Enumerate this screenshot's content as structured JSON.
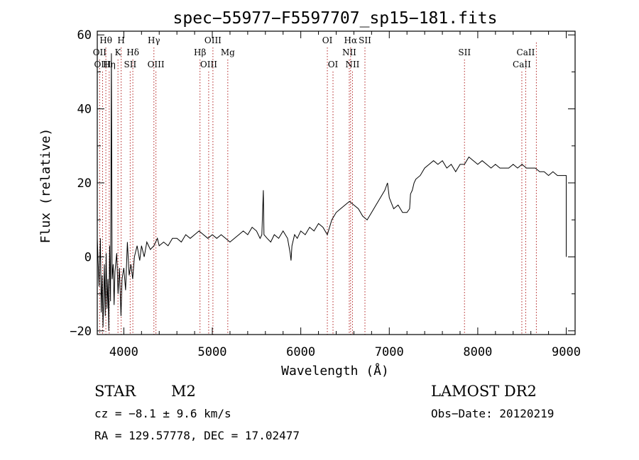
{
  "chart_data": {
    "type": "line",
    "title": "spec−55977−F5597707_sp15−181.fits",
    "xlabel": "Wavelength (Å)",
    "ylabel": "Flux (relative)",
    "xlim": [
      3700,
      9100
    ],
    "ylim": [
      -21,
      61
    ],
    "x_ticks": [
      4000,
      5000,
      6000,
      7000,
      8000,
      9000
    ],
    "y_ticks": [
      -20,
      0,
      20,
      40,
      60
    ],
    "x_tick_labels": [
      "4000",
      "5000",
      "6000",
      "7000",
      "8000",
      "9000"
    ],
    "y_tick_labels": [
      "−20",
      "0",
      "20",
      "40",
      "60"
    ],
    "line_color": "#000000",
    "marker_color": "#b22222",
    "series": [
      {
        "points": [
          [
            3700,
            5
          ],
          [
            3720,
            -8
          ],
          [
            3735,
            5
          ],
          [
            3745,
            -15
          ],
          [
            3755,
            -5
          ],
          [
            3765,
            -19
          ],
          [
            3780,
            -2
          ],
          [
            3790,
            -16
          ],
          [
            3800,
            1
          ],
          [
            3810,
            -14
          ],
          [
            3820,
            -6
          ],
          [
            3830,
            -20
          ],
          [
            3840,
            3
          ],
          [
            3850,
            -12
          ],
          [
            3860,
            55
          ],
          [
            3868,
            -6
          ],
          [
            3880,
            -2
          ],
          [
            3890,
            -13
          ],
          [
            3900,
            -4
          ],
          [
            3920,
            1
          ],
          [
            3935,
            -10
          ],
          [
            3950,
            -3
          ],
          [
            3968,
            -16
          ],
          [
            3980,
            -6
          ],
          [
            4000,
            -3
          ],
          [
            4020,
            -9
          ],
          [
            4040,
            4
          ],
          [
            4060,
            -5
          ],
          [
            4080,
            -2
          ],
          [
            4100,
            -6
          ],
          [
            4120,
            0
          ],
          [
            4150,
            3
          ],
          [
            4180,
            -1
          ],
          [
            4200,
            3
          ],
          [
            4230,
            0
          ],
          [
            4260,
            4
          ],
          [
            4300,
            2
          ],
          [
            4340,
            3
          ],
          [
            4380,
            5
          ],
          [
            4400,
            3
          ],
          [
            4450,
            4
          ],
          [
            4500,
            3
          ],
          [
            4550,
            5
          ],
          [
            4600,
            5
          ],
          [
            4650,
            4
          ],
          [
            4700,
            6
          ],
          [
            4750,
            5
          ],
          [
            4800,
            6
          ],
          [
            4850,
            7
          ],
          [
            4900,
            6
          ],
          [
            4950,
            5
          ],
          [
            5000,
            6
          ],
          [
            5050,
            5
          ],
          [
            5100,
            6
          ],
          [
            5150,
            5
          ],
          [
            5200,
            4
          ],
          [
            5250,
            5
          ],
          [
            5300,
            6
          ],
          [
            5350,
            7
          ],
          [
            5400,
            6
          ],
          [
            5450,
            8
          ],
          [
            5500,
            7
          ],
          [
            5540,
            5
          ],
          [
            5560,
            6
          ],
          [
            5577,
            18
          ],
          [
            5584,
            6
          ],
          [
            5620,
            5
          ],
          [
            5660,
            4
          ],
          [
            5700,
            6
          ],
          [
            5750,
            5
          ],
          [
            5800,
            7
          ],
          [
            5850,
            5
          ],
          [
            5880,
            1
          ],
          [
            5890,
            -1
          ],
          [
            5900,
            3
          ],
          [
            5930,
            6
          ],
          [
            5960,
            5
          ],
          [
            6000,
            7
          ],
          [
            6050,
            6
          ],
          [
            6100,
            8
          ],
          [
            6150,
            7
          ],
          [
            6200,
            9
          ],
          [
            6250,
            8
          ],
          [
            6300,
            6
          ],
          [
            6350,
            10
          ],
          [
            6400,
            12
          ],
          [
            6450,
            13
          ],
          [
            6500,
            14
          ],
          [
            6550,
            15
          ],
          [
            6600,
            14
          ],
          [
            6650,
            13
          ],
          [
            6700,
            11
          ],
          [
            6750,
            10
          ],
          [
            6800,
            12
          ],
          [
            6850,
            14
          ],
          [
            6900,
            16
          ],
          [
            6950,
            18
          ],
          [
            6980,
            20
          ],
          [
            7000,
            16
          ],
          [
            7050,
            13
          ],
          [
            7100,
            14
          ],
          [
            7150,
            12
          ],
          [
            7200,
            12
          ],
          [
            7230,
            13
          ],
          [
            7240,
            17
          ],
          [
            7260,
            18
          ],
          [
            7280,
            20
          ],
          [
            7300,
            21
          ],
          [
            7350,
            22
          ],
          [
            7400,
            24
          ],
          [
            7450,
            25
          ],
          [
            7500,
            26
          ],
          [
            7550,
            25
          ],
          [
            7600,
            26
          ],
          [
            7650,
            24
          ],
          [
            7700,
            25
          ],
          [
            7750,
            23
          ],
          [
            7800,
            25
          ],
          [
            7850,
            25
          ],
          [
            7900,
            27
          ],
          [
            7950,
            26
          ],
          [
            8000,
            25
          ],
          [
            8050,
            26
          ],
          [
            8100,
            25
          ],
          [
            8150,
            24
          ],
          [
            8200,
            25
          ],
          [
            8250,
            24
          ],
          [
            8300,
            24
          ],
          [
            8350,
            24
          ],
          [
            8400,
            25
          ],
          [
            8450,
            24
          ],
          [
            8500,
            25
          ],
          [
            8550,
            24
          ],
          [
            8600,
            24
          ],
          [
            8650,
            24
          ],
          [
            8700,
            23
          ],
          [
            8750,
            23
          ],
          [
            8800,
            22
          ],
          [
            8850,
            23
          ],
          [
            8900,
            22
          ],
          [
            8950,
            22
          ],
          [
            9000,
            22
          ],
          [
            9000,
            0
          ]
        ]
      }
    ],
    "line_markers": [
      {
        "label": "Hθ",
        "x": 3797,
        "row": 0
      },
      {
        "label": "H",
        "x": 3970,
        "row": 0
      },
      {
        "label": "Hγ",
        "x": 4340,
        "row": 0
      },
      {
        "label": "OIII",
        "x": 5007,
        "row": 0
      },
      {
        "label": "OI",
        "x": 6300,
        "row": 0
      },
      {
        "label": "Hα",
        "x": 6563,
        "row": 0
      },
      {
        "label": "SII",
        "x": 6725,
        "row": 0
      },
      {
        "label": "OII",
        "x": 3727,
        "row": 1
      },
      {
        "label": "K",
        "x": 3934,
        "row": 1
      },
      {
        "label": "Hδ",
        "x": 4102,
        "row": 1
      },
      {
        "label": "Hβ",
        "x": 4861,
        "row": 1
      },
      {
        "label": "Mg",
        "x": 5175,
        "row": 1
      },
      {
        "label": "NII",
        "x": 6548,
        "row": 1
      },
      {
        "label": "SII",
        "x": 7850,
        "row": 1
      },
      {
        "label": "CaII",
        "x": 8542,
        "row": 1
      },
      {
        "label": "OIII",
        "x": 3760,
        "row": 2
      },
      {
        "label": "Hη",
        "x": 3835,
        "row": 2
      },
      {
        "label": "SII",
        "x": 4072,
        "row": 2
      },
      {
        "label": "OIII",
        "x": 4363,
        "row": 2
      },
      {
        "label": "OIII",
        "x": 4959,
        "row": 2
      },
      {
        "label": "OI",
        "x": 6364,
        "row": 2
      },
      {
        "label": "NII",
        "x": 6584,
        "row": 2
      },
      {
        "label": "CaII",
        "x": 8498,
        "row": 2
      },
      {
        "label": "",
        "x": 8662,
        "row": 3
      }
    ]
  },
  "info": {
    "object_class": "STAR",
    "subclass": "M2",
    "survey": "LAMOST DR2",
    "cz": "cz = −8.1 ± 9.6 km/s",
    "obs_date": "Obs−Date: 20120219",
    "coords": "RA = 129.57778, DEC =  17.02477"
  }
}
